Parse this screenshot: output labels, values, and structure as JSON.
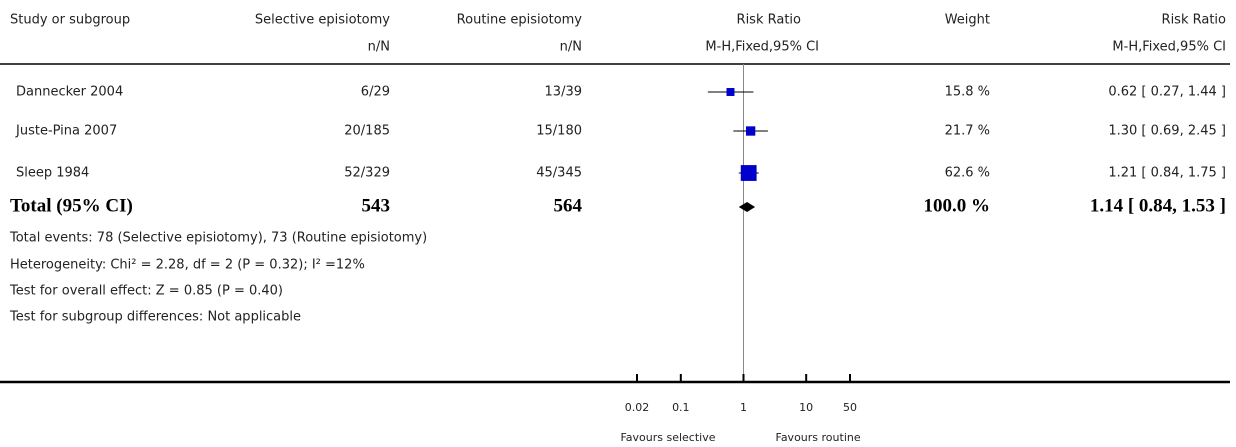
{
  "chart_data": {
    "type": "forest",
    "headers": [
      {
        "title": "Study or subgroup"
      },
      {
        "title": "Selective episiotomy",
        "subtitle": "n/N"
      },
      {
        "title": "Routine episiotomy",
        "subtitle": "n/N"
      },
      {
        "title": "Risk Ratio",
        "subtitle": "M-H,Fixed,95% CI"
      },
      {
        "title": "Weight"
      },
      {
        "title": "Risk Ratio",
        "subtitle": "M-H,Fixed,95% CI"
      }
    ],
    "studies": [
      {
        "name": "Dannecker 2004",
        "selective": "6/29",
        "routine": "13/39",
        "rr": 0.62,
        "ci_low": 0.27,
        "ci_high": 1.44,
        "weight": 15.8,
        "weight_label": "15.8 %",
        "ci_label": "0.62 [ 0.27, 1.44 ]"
      },
      {
        "name": "Juste-Pina 2007",
        "selective": "20/185",
        "routine": "15/180",
        "rr": 1.3,
        "ci_low": 0.69,
        "ci_high": 2.45,
        "weight": 21.7,
        "weight_label": "21.7 %",
        "ci_label": "1.30 [ 0.69, 2.45 ]"
      },
      {
        "name": "Sleep 1984",
        "selective": "52/329",
        "routine": "45/345",
        "rr": 1.21,
        "ci_low": 0.84,
        "ci_high": 1.75,
        "weight": 62.6,
        "weight_label": "62.6 %",
        "ci_label": "1.21 [ 0.84, 1.75 ]"
      }
    ],
    "total": {
      "name": "Total (95% CI)",
      "selective": 543,
      "routine": 564,
      "rr": 1.14,
      "ci_low": 0.84,
      "ci_high": 1.53,
      "weight": 100.0,
      "weight_label": "100.0 %",
      "ci_label": "1.14 [ 0.84, 1.53 ]"
    },
    "notes": [
      "Total events: 78 (Selective episiotomy), 73 (Routine episiotomy)",
      "Heterogeneity: Chi² = 2.28, df = 2 (P = 0.32); I² =12%",
      "Test for overall effect: Z = 0.85 (P = 0.40)",
      "Test for subgroup differences: Not applicable"
    ],
    "log_x": true,
    "xlim": [
      0.02,
      50
    ],
    "xticks": [
      0.02,
      0.1,
      1,
      10,
      50
    ],
    "xlabel_left": "Favours selective",
    "xlabel_right": "Favours routine",
    "color": "#0000cc"
  }
}
